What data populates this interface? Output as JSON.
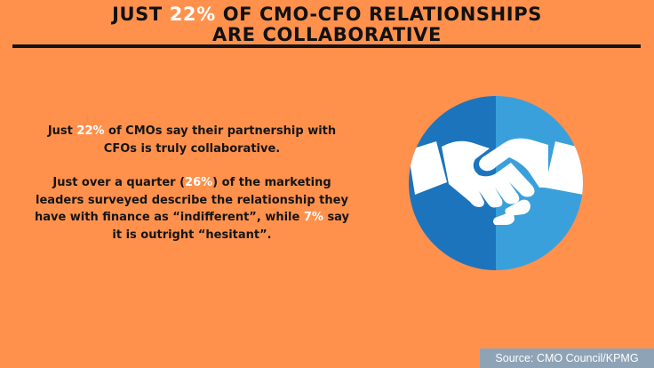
{
  "header": {
    "title_line1_pre": "JUST ",
    "title_line1_highlight": "22%",
    "title_line1_post": " OF CMO-CFO RELATIONSHIPS",
    "title_line2": "ARE COLLABORATIVE"
  },
  "body": {
    "p1_pre": "Just ",
    "p1_highlight": "22%",
    "p1_post": " of CMOs say their partnership with CFOs is truly collaborative.",
    "p2_pre": "Just over a quarter (",
    "p2_highlight1": "26%",
    "p2_mid": ") of the marketing leaders surveyed describe the relationship they have with finance as “indifferent”, while ",
    "p2_highlight2": "7%",
    "p2_post": " say it is outright “hesitant”."
  },
  "emblem": {
    "icon": "handshake-icon",
    "colors": {
      "left": "#1C74BD",
      "right": "#3AA0DB",
      "hands": "#FFFFFF"
    }
  },
  "footer": {
    "source": "Source: CMO Council/KPMG"
  },
  "colors": {
    "background": "#FF914D",
    "highlight": "#FFFFFF",
    "text": "#111111",
    "rule": "#141414",
    "source_bg": "#8FA3B6"
  }
}
